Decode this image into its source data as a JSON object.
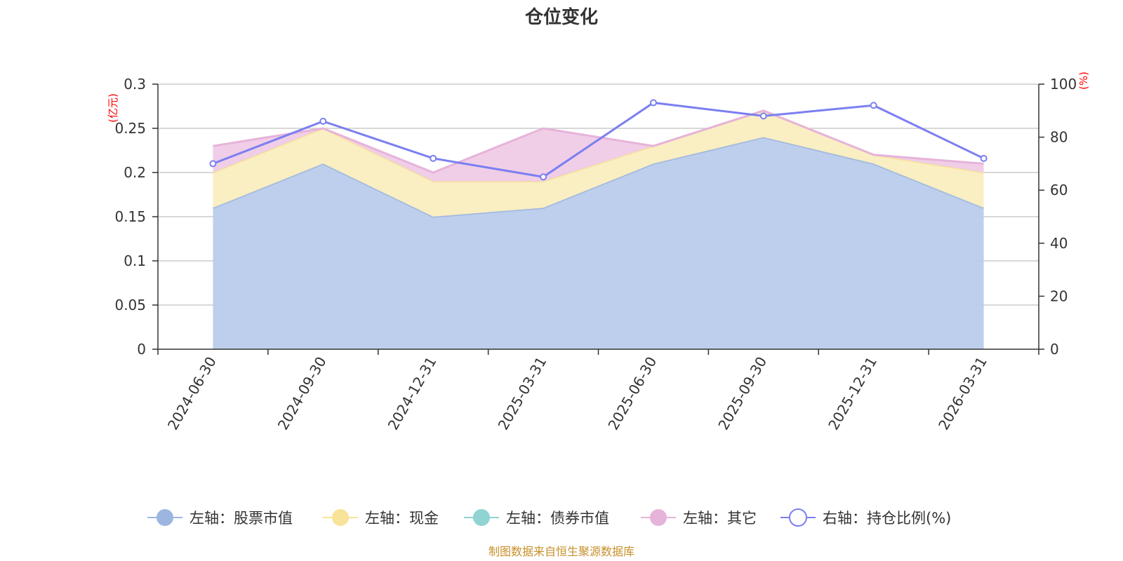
{
  "chart_data": {
    "type": "area",
    "title": "仓位变化",
    "categories": [
      "2024-06-30",
      "2024-09-30",
      "2024-12-31",
      "2025-03-31",
      "2025-06-30",
      "2025-09-30",
      "2025-12-31",
      "2026-03-31"
    ],
    "left_axis": {
      "unit": "(亿元)",
      "ylim": [
        0,
        0.3
      ],
      "ticks": [
        "0",
        "0.05",
        "0.1",
        "0.15",
        "0.2",
        "0.25",
        "0.3"
      ],
      "tick_values": [
        0,
        0.05,
        0.1,
        0.15,
        0.2,
        0.25,
        0.3
      ]
    },
    "right_axis": {
      "unit": "(%)",
      "ylim": [
        0,
        100
      ],
      "ticks": [
        "0",
        "20",
        "40",
        "60",
        "80",
        "100"
      ],
      "tick_values": [
        0,
        20,
        40,
        60,
        80,
        100
      ]
    },
    "series": [
      {
        "name": "左轴：股票市值",
        "kind": "stacked-area",
        "axis": "left",
        "color": "#9db6e0",
        "fill": "#b9cceb",
        "values": [
          0.16,
          0.21,
          0.15,
          0.16,
          0.21,
          0.24,
          0.21,
          0.16
        ]
      },
      {
        "name": "左轴：现金",
        "kind": "stacked-area",
        "axis": "left",
        "color": "#f7e39a",
        "fill": "#faeec0",
        "values": [
          0.04,
          0.04,
          0.04,
          0.03,
          0.02,
          0.03,
          0.01,
          0.04
        ]
      },
      {
        "name": "左轴：债券市值",
        "kind": "stacked-area",
        "axis": "left",
        "color": "#8fd3d3",
        "fill": "#b6e4e4",
        "values": [
          0,
          0,
          0,
          0,
          0,
          0,
          0,
          0
        ]
      },
      {
        "name": "左轴：其它",
        "kind": "stacked-area",
        "axis": "left",
        "color": "#e6b3da",
        "fill": "#efcbe6",
        "values": [
          0.03,
          0,
          0.01,
          0.06,
          0,
          0,
          0,
          0.01
        ]
      },
      {
        "name": "右轴：持仓比例(%)",
        "kind": "line",
        "axis": "right",
        "color": "#7b7ff0",
        "values": [
          70,
          86,
          72,
          65,
          93,
          88,
          92,
          72
        ]
      }
    ],
    "legend_position": "bottom",
    "grid": true
  },
  "footer": {
    "source": "制图数据来自恒生聚源数据库"
  }
}
